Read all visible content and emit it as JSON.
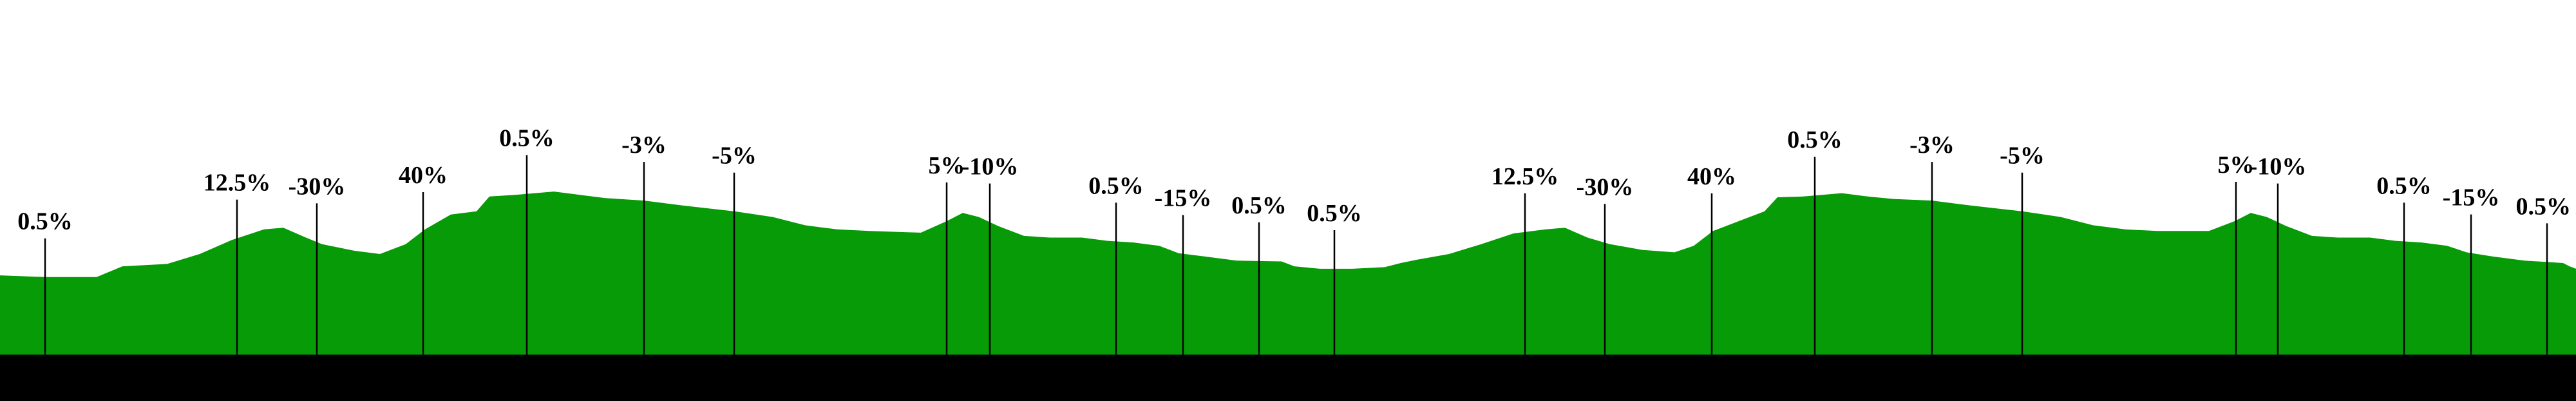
{
  "colors": {
    "terrain": "#079B07",
    "base_band": "#000000",
    "background": "#ffffff",
    "marker_line": "#000000"
  },
  "chart_data": {
    "type": "area",
    "title": "",
    "xlabel": "",
    "ylabel": "",
    "x_range": [
      0,
      4000
    ],
    "y_range": [
      0,
      240
    ],
    "grid": false,
    "profile": [
      [
        0,
        186
      ],
      [
        70,
        188
      ],
      [
        150,
        188
      ],
      [
        190,
        175
      ],
      [
        260,
        172
      ],
      [
        310,
        160
      ],
      [
        360,
        143
      ],
      [
        410,
        130
      ],
      [
        440,
        128
      ],
      [
        475,
        140
      ],
      [
        500,
        148
      ],
      [
        550,
        156
      ],
      [
        590,
        160
      ],
      [
        630,
        148
      ],
      [
        660,
        130
      ],
      [
        700,
        112
      ],
      [
        740,
        108
      ],
      [
        760,
        90
      ],
      [
        800,
        88
      ],
      [
        860,
        84
      ],
      [
        900,
        88
      ],
      [
        940,
        92
      ],
      [
        1000,
        95
      ],
      [
        1060,
        101
      ],
      [
        1140,
        108
      ],
      [
        1200,
        115
      ],
      [
        1250,
        125
      ],
      [
        1300,
        130
      ],
      [
        1350,
        132
      ],
      [
        1430,
        134
      ],
      [
        1470,
        120
      ],
      [
        1495,
        110
      ],
      [
        1520,
        115
      ],
      [
        1550,
        126
      ],
      [
        1590,
        138
      ],
      [
        1630,
        140
      ],
      [
        1680,
        140
      ],
      [
        1720,
        144
      ],
      [
        1760,
        146
      ],
      [
        1800,
        150
      ],
      [
        1830,
        159
      ],
      [
        1870,
        163
      ],
      [
        1920,
        168
      ],
      [
        1990,
        169
      ],
      [
        2010,
        175
      ],
      [
        2050,
        178
      ],
      [
        2100,
        178
      ],
      [
        2150,
        176
      ],
      [
        2175,
        171
      ],
      [
        2200,
        167
      ],
      [
        2250,
        160
      ],
      [
        2300,
        148
      ],
      [
        2350,
        135
      ],
      [
        2400,
        130
      ],
      [
        2430,
        128
      ],
      [
        2465,
        140
      ],
      [
        2500,
        148
      ],
      [
        2550,
        155
      ],
      [
        2600,
        158
      ],
      [
        2630,
        150
      ],
      [
        2660,
        132
      ],
      [
        2700,
        120
      ],
      [
        2740,
        108
      ],
      [
        2760,
        91
      ],
      [
        2800,
        90
      ],
      [
        2860,
        86
      ],
      [
        2900,
        90
      ],
      [
        2940,
        93
      ],
      [
        3000,
        95
      ],
      [
        3060,
        101
      ],
      [
        3140,
        108
      ],
      [
        3200,
        115
      ],
      [
        3250,
        125
      ],
      [
        3300,
        130
      ],
      [
        3350,
        132
      ],
      [
        3430,
        132
      ],
      [
        3470,
        120
      ],
      [
        3495,
        110
      ],
      [
        3520,
        115
      ],
      [
        3550,
        126
      ],
      [
        3590,
        138
      ],
      [
        3630,
        140
      ],
      [
        3680,
        140
      ],
      [
        3720,
        144
      ],
      [
        3760,
        146
      ],
      [
        3800,
        150
      ],
      [
        3830,
        158
      ],
      [
        3870,
        163
      ],
      [
        3920,
        168
      ],
      [
        3980,
        171
      ],
      [
        3990,
        175
      ],
      [
        4000,
        178
      ]
    ],
    "gradient_markers": [
      {
        "x": 70,
        "label": "0.5%"
      },
      {
        "x": 368,
        "label": "12.5%"
      },
      {
        "x": 492,
        "label": "-30%"
      },
      {
        "x": 657,
        "label": "40%"
      },
      {
        "x": 818,
        "label": "0.5%"
      },
      {
        "x": 1000,
        "label": "-3%"
      },
      {
        "x": 1140,
        "label": "-5%"
      },
      {
        "x": 1470,
        "label": "5%"
      },
      {
        "x": 1537,
        "label": "-10%"
      },
      {
        "x": 1733,
        "label": "0.5%"
      },
      {
        "x": 1837,
        "label": "-15%"
      },
      {
        "x": 1955,
        "label": "0.5%"
      },
      {
        "x": 2072,
        "label": "0.5%"
      },
      {
        "x": 2368,
        "label": "12.5%"
      },
      {
        "x": 2492,
        "label": "-30%"
      },
      {
        "x": 2658,
        "label": "40%"
      },
      {
        "x": 2818,
        "label": "0.5%"
      },
      {
        "x": 3000,
        "label": "-3%"
      },
      {
        "x": 3140,
        "label": "-5%"
      },
      {
        "x": 3472,
        "label": "5%"
      },
      {
        "x": 3537,
        "label": "-10%"
      },
      {
        "x": 3733,
        "label": "0.5%"
      },
      {
        "x": 3837,
        "label": "-15%"
      },
      {
        "x": 3955,
        "label": "0.5%"
      }
    ]
  }
}
